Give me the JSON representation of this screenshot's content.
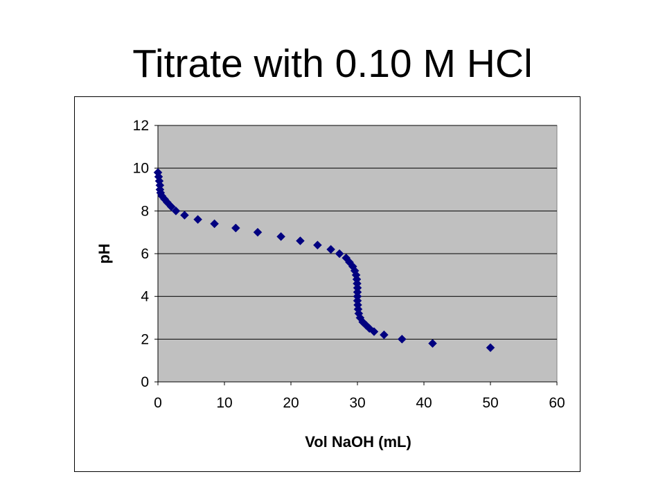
{
  "slide": {
    "title": "Titrate with 0.10 M HCl"
  },
  "colors": {
    "plot_background": "#c0c0c0",
    "marker": "#000080",
    "gridline": "#000000"
  },
  "chart_data": {
    "type": "scatter",
    "title": "",
    "xlabel": "Vol NaOH (mL)",
    "ylabel": "pH",
    "xlim": [
      0,
      60
    ],
    "ylim": [
      0,
      12
    ],
    "xticks": [
      0,
      10,
      20,
      30,
      40,
      50,
      60
    ],
    "yticks": [
      0,
      2,
      4,
      6,
      8,
      10,
      12
    ],
    "grid": "horizontal major gridlines",
    "legend": "none",
    "marker": "diamond",
    "series": [
      {
        "points": [
          [
            0.0,
            9.8
          ],
          [
            0.1,
            9.6
          ],
          [
            0.2,
            9.4
          ],
          [
            0.3,
            9.2
          ],
          [
            0.3,
            9.0
          ],
          [
            0.4,
            8.85
          ],
          [
            0.6,
            8.7
          ],
          [
            1.0,
            8.55
          ],
          [
            1.4,
            8.4
          ],
          [
            2.0,
            8.2
          ],
          [
            2.7,
            8.0
          ],
          [
            4.0,
            7.8
          ],
          [
            6.0,
            7.6
          ],
          [
            8.5,
            7.4
          ],
          [
            11.7,
            7.2
          ],
          [
            15.0,
            7.0
          ],
          [
            18.5,
            6.8
          ],
          [
            21.4,
            6.6
          ],
          [
            24.0,
            6.4
          ],
          [
            26.0,
            6.2
          ],
          [
            27.3,
            6.0
          ],
          [
            28.3,
            5.8
          ],
          [
            28.8,
            5.6
          ],
          [
            29.3,
            5.4
          ],
          [
            29.6,
            5.2
          ],
          [
            29.8,
            5.0
          ],
          [
            29.9,
            4.8
          ],
          [
            29.95,
            4.6
          ],
          [
            30.0,
            4.4
          ],
          [
            30.0,
            4.2
          ],
          [
            30.0,
            4.0
          ],
          [
            30.0,
            3.8
          ],
          [
            30.05,
            3.6
          ],
          [
            30.1,
            3.4
          ],
          [
            30.2,
            3.2
          ],
          [
            30.4,
            3.0
          ],
          [
            30.8,
            2.8
          ],
          [
            31.3,
            2.65
          ],
          [
            31.8,
            2.5
          ],
          [
            32.5,
            2.35
          ],
          [
            34.0,
            2.2
          ],
          [
            36.7,
            2.0
          ],
          [
            41.3,
            1.8
          ],
          [
            50.0,
            1.6
          ]
        ]
      }
    ]
  }
}
